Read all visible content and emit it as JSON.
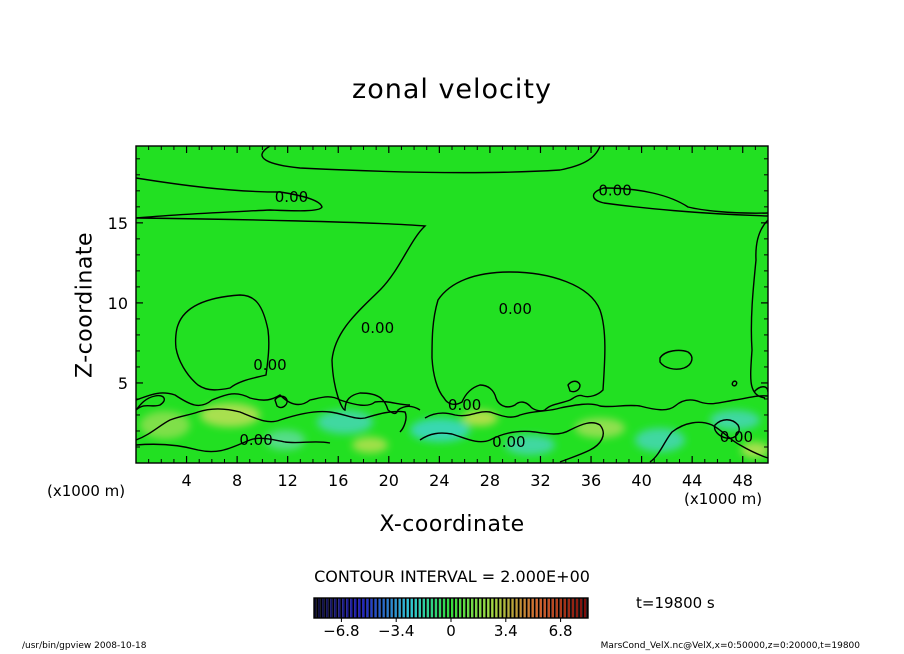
{
  "chart_data": {
    "type": "heatmap",
    "title": "zonal velocity",
    "xlabel": "X-coordinate",
    "ylabel": "Z-coordinate",
    "x_unit": "(x1000 m)",
    "xlim": [
      0,
      50
    ],
    "ylim": [
      0,
      19.8
    ],
    "x_ticks": [
      4,
      8,
      12,
      16,
      20,
      24,
      28,
      32,
      36,
      40,
      44,
      48
    ],
    "y_ticks": [
      5,
      10,
      15
    ],
    "contour_interval_label": "CONTOUR INTERVAL = 2.000E+00",
    "contour_labels": [
      {
        "text": "0.00",
        "x": 12.3,
        "y": 16.5
      },
      {
        "text": "0.00",
        "x": 37.9,
        "y": 16.9
      },
      {
        "text": "0.00",
        "x": 30.0,
        "y": 9.5
      },
      {
        "text": "0.00",
        "x": 19.1,
        "y": 8.3
      },
      {
        "text": "0.00",
        "x": 10.6,
        "y": 6.0
      },
      {
        "text": "0.00",
        "x": 26.0,
        "y": 3.5
      },
      {
        "text": "0.00",
        "x": 9.5,
        "y": 1.3
      },
      {
        "text": "0.00",
        "x": 29.5,
        "y": 1.2
      },
      {
        "text": "0.00",
        "x": 47.5,
        "y": 1.5
      }
    ],
    "colorbar": {
      "range": [
        -8.5,
        8.5
      ],
      "tick_labels": [
        "-6.8",
        "-3.4",
        "0",
        "3.4",
        "6.8"
      ],
      "tick_values": [
        -6.8,
        -3.4,
        0,
        3.4,
        6.8
      ]
    },
    "time_label": "t=19800 s",
    "colors": {
      "field": "#22e022",
      "contour": "#000000"
    }
  },
  "footer": {
    "left": "/usr/bin/gpview   2008-10-18",
    "right": "MarsCond_VelX.nc@VelX,x=0:50000,z=0:20000,t=19800"
  }
}
